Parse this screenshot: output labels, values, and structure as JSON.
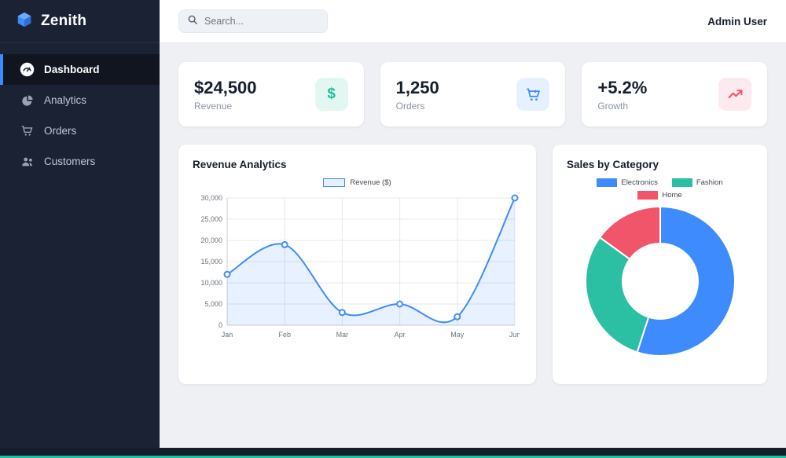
{
  "sidebar": {
    "brand": "Zenith",
    "items": [
      {
        "label": "Dashboard",
        "icon": "dashboard-gauge-icon",
        "active": true
      },
      {
        "label": "Analytics",
        "icon": "pie-chart-icon",
        "active": false
      },
      {
        "label": "Orders",
        "icon": "cart-icon",
        "active": false
      },
      {
        "label": "Customers",
        "icon": "people-icon",
        "active": false
      }
    ]
  },
  "topbar": {
    "search_placeholder": "Search...",
    "user": "Admin User"
  },
  "stats": [
    {
      "value": "$24,500",
      "label": "Revenue",
      "icon": "dollar-icon",
      "accent": "#1fbfa2"
    },
    {
      "value": "1,250",
      "label": "Orders",
      "icon": "cart-icon",
      "accent": "#3d8bfd"
    },
    {
      "value": "+5.2%",
      "label": "Growth",
      "icon": "trend-up-icon",
      "accent": "#f0556a"
    }
  ],
  "chart_data": [
    {
      "type": "line",
      "title": "Revenue Analytics",
      "x": [
        "Jan",
        "Feb",
        "Mar",
        "Apr",
        "May",
        "Jun"
      ],
      "series": [
        {
          "name": "Revenue ($)",
          "values": [
            12000,
            19000,
            3000,
            5000,
            2000,
            30000
          ]
        }
      ],
      "ylim": [
        0,
        30000
      ],
      "yticks": [
        0,
        5000,
        10000,
        15000,
        20000,
        25000,
        30000
      ],
      "ytick_labels": [
        "0",
        "5,000",
        "10,000",
        "15,000",
        "20,000",
        "25,000",
        "30,000"
      ],
      "grid": true,
      "legend_position": "top",
      "line_color": "#3d8bfd",
      "fill_color": "rgba(61,139,253,0.12)"
    },
    {
      "type": "doughnut",
      "title": "Sales by Category",
      "labels": [
        "Electronics",
        "Fashion",
        "Home"
      ],
      "values": [
        55,
        30,
        15
      ],
      "colors": [
        "#3d8bfd",
        "#2bbfa4",
        "#f0556a"
      ],
      "legend_position": "top"
    }
  ]
}
